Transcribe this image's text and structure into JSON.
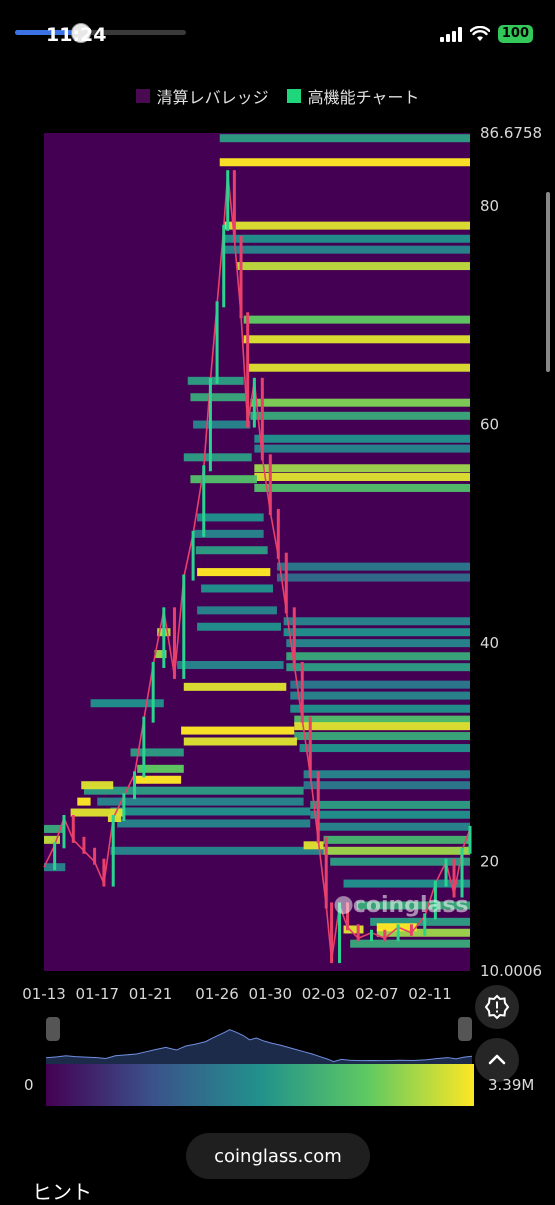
{
  "status_bar": {
    "time": "11:24",
    "battery": "100",
    "media_progress": 0.38
  },
  "legend": [
    {
      "label": "清算レバレッジ",
      "color": "#4a0a52"
    },
    {
      "label": "高機能チャート",
      "color": "#1fd67a"
    }
  ],
  "chart_data": {
    "type": "heatmap",
    "title": "",
    "y_ticks": [
      "86.6758",
      "80",
      "60",
      "40",
      "20",
      "10.0006"
    ],
    "y_tick_values": [
      86.6758,
      80,
      60,
      40,
      20,
      10.0006
    ],
    "ylim": [
      10.0006,
      86.6758
    ],
    "x_ticks": [
      "01-13",
      "01-17",
      "01-21",
      "01-26",
      "01-30",
      "02-03",
      "02-07",
      "02-11"
    ],
    "x_range_days": [
      0,
      32
    ],
    "x_tick_days": [
      0,
      4,
      8,
      13,
      17,
      21,
      25,
      29
    ],
    "price_series": [
      {
        "d": 0,
        "p": 19.5
      },
      {
        "d": 0.8,
        "p": 21.5
      },
      {
        "d": 1.5,
        "p": 24
      },
      {
        "d": 2.2,
        "p": 22
      },
      {
        "d": 3,
        "p": 21
      },
      {
        "d": 3.8,
        "p": 20
      },
      {
        "d": 4.5,
        "p": 18
      },
      {
        "d": 5.2,
        "p": 24
      },
      {
        "d": 6,
        "p": 26
      },
      {
        "d": 6.8,
        "p": 28
      },
      {
        "d": 7.5,
        "p": 33
      },
      {
        "d": 8.2,
        "p": 38
      },
      {
        "d": 9,
        "p": 43
      },
      {
        "d": 9.8,
        "p": 37
      },
      {
        "d": 10.5,
        "p": 46
      },
      {
        "d": 11.2,
        "p": 50
      },
      {
        "d": 12,
        "p": 56
      },
      {
        "d": 12.5,
        "p": 64
      },
      {
        "d": 13,
        "p": 71
      },
      {
        "d": 13.5,
        "p": 78
      },
      {
        "d": 13.8,
        "p": 83
      },
      {
        "d": 14.3,
        "p": 77
      },
      {
        "d": 14.8,
        "p": 70
      },
      {
        "d": 15.3,
        "p": 60
      },
      {
        "d": 15.8,
        "p": 64
      },
      {
        "d": 16.4,
        "p": 57
      },
      {
        "d": 17,
        "p": 52
      },
      {
        "d": 17.6,
        "p": 48
      },
      {
        "d": 18.2,
        "p": 43
      },
      {
        "d": 18.8,
        "p": 38
      },
      {
        "d": 19.4,
        "p": 33
      },
      {
        "d": 20,
        "p": 28
      },
      {
        "d": 20.6,
        "p": 22
      },
      {
        "d": 21.2,
        "p": 16
      },
      {
        "d": 21.6,
        "p": 11
      },
      {
        "d": 22.2,
        "p": 16
      },
      {
        "d": 22.8,
        "p": 14
      },
      {
        "d": 23.6,
        "p": 13
      },
      {
        "d": 24.6,
        "p": 13.5
      },
      {
        "d": 25.6,
        "p": 13
      },
      {
        "d": 26.6,
        "p": 14
      },
      {
        "d": 27.6,
        "p": 13.5
      },
      {
        "d": 28.6,
        "p": 15
      },
      {
        "d": 29.4,
        "p": 18
      },
      {
        "d": 30.2,
        "p": 20
      },
      {
        "d": 30.8,
        "p": 17
      },
      {
        "d": 31.4,
        "p": 21
      },
      {
        "d": 32,
        "p": 23
      }
    ],
    "liquidation_levels": [
      {
        "p": 86.2,
        "d0": 13.2,
        "i": 0.55
      },
      {
        "p": 84,
        "d0": 13.2,
        "i": 1.0
      },
      {
        "p": 78.2,
        "d0": 13.5,
        "i": 0.95
      },
      {
        "p": 77,
        "d0": 13.5,
        "i": 0.5
      },
      {
        "p": 76,
        "d0": 13.5,
        "i": 0.45
      },
      {
        "p": 74.5,
        "d0": 14.5,
        "i": 0.9
      },
      {
        "p": 69.6,
        "d0": 15,
        "i": 0.75
      },
      {
        "p": 67.8,
        "d0": 15,
        "i": 0.95
      },
      {
        "p": 65.2,
        "d0": 15.3,
        "i": 0.95
      },
      {
        "p": 62,
        "d0": 15.5,
        "i": 0.8
      },
      {
        "p": 60.8,
        "d0": 15.5,
        "i": 0.6
      },
      {
        "p": 58.7,
        "d0": 15.8,
        "i": 0.5
      },
      {
        "p": 57.8,
        "d0": 15.8,
        "i": 0.45
      },
      {
        "p": 56,
        "d0": 15.8,
        "i": 0.85
      },
      {
        "p": 55.2,
        "d0": 15.8,
        "i": 0.95
      },
      {
        "p": 54.2,
        "d0": 15.8,
        "i": 0.7
      },
      {
        "p": 47,
        "d0": 17.5,
        "i": 0.4
      },
      {
        "p": 46,
        "d0": 17.5,
        "i": 0.35
      },
      {
        "p": 42,
        "d0": 18,
        "i": 0.45
      },
      {
        "p": 41,
        "d0": 18,
        "i": 0.5
      },
      {
        "p": 40,
        "d0": 18.2,
        "i": 0.45
      },
      {
        "p": 38.8,
        "d0": 18.2,
        "i": 0.6
      },
      {
        "p": 37.8,
        "d0": 18.2,
        "i": 0.55
      },
      {
        "p": 36.2,
        "d0": 18.5,
        "i": 0.4
      },
      {
        "p": 35.2,
        "d0": 18.5,
        "i": 0.45
      },
      {
        "p": 34,
        "d0": 18.5,
        "i": 0.5
      },
      {
        "p": 33,
        "d0": 18.8,
        "i": 0.7
      },
      {
        "p": 32.4,
        "d0": 18.8,
        "i": 0.95
      },
      {
        "p": 31.5,
        "d0": 18.8,
        "i": 0.6
      },
      {
        "p": 30.4,
        "d0": 19.2,
        "i": 0.5
      },
      {
        "p": 28,
        "d0": 19.5,
        "i": 0.45
      },
      {
        "p": 27,
        "d0": 19.5,
        "i": 0.4
      },
      {
        "p": 25.2,
        "d0": 20,
        "i": 0.55
      },
      {
        "p": 24.3,
        "d0": 20,
        "i": 0.5
      },
      {
        "p": 23.2,
        "d0": 20.5,
        "i": 0.45
      },
      {
        "p": 22,
        "d0": 21,
        "i": 0.65
      },
      {
        "p": 21,
        "d0": 21,
        "i": 0.85
      },
      {
        "p": 20,
        "d0": 21.5,
        "i": 0.55
      },
      {
        "p": 18,
        "d0": 22.5,
        "i": 0.5
      },
      {
        "p": 16,
        "d0": 23.5,
        "i": 0.6
      },
      {
        "p": 14.5,
        "d0": 24.5,
        "i": 0.55
      },
      {
        "p": 13.5,
        "d0": 25,
        "i": 0.85
      },
      {
        "p": 12.5,
        "d0": 23,
        "i": 0.6
      },
      {
        "p": 64,
        "d0": 10.8,
        "d1": 15,
        "i": 0.55
      },
      {
        "p": 62.5,
        "d0": 11,
        "d1": 15.4,
        "i": 0.6
      },
      {
        "p": 60,
        "d0": 11.2,
        "d1": 15.5,
        "i": 0.45
      },
      {
        "p": 57,
        "d0": 10.5,
        "d1": 15.6,
        "i": 0.55
      },
      {
        "p": 55,
        "d0": 11,
        "d1": 16,
        "i": 0.7
      },
      {
        "p": 51.5,
        "d0": 11.5,
        "d1": 16.5,
        "i": 0.5
      },
      {
        "p": 50,
        "d0": 11.3,
        "d1": 16.5,
        "i": 0.45
      },
      {
        "p": 48.5,
        "d0": 11.4,
        "d1": 16.8,
        "i": 0.55
      },
      {
        "p": 46.5,
        "d0": 11.5,
        "d1": 17,
        "i": 1.0
      },
      {
        "p": 45,
        "d0": 11.8,
        "d1": 17.2,
        "i": 0.5
      },
      {
        "p": 43,
        "d0": 11.5,
        "d1": 17.5,
        "i": 0.45
      },
      {
        "p": 41.5,
        "d0": 11.5,
        "d1": 17.8,
        "i": 0.5
      },
      {
        "p": 38,
        "d0": 10,
        "d1": 18,
        "i": 0.45
      },
      {
        "p": 36,
        "d0": 10.5,
        "d1": 18.2,
        "i": 0.95
      },
      {
        "p": 32,
        "d0": 10.3,
        "d1": 18.8,
        "i": 1.0
      },
      {
        "p": 31,
        "d0": 10.5,
        "d1": 19,
        "i": 0.95
      },
      {
        "p": 34.5,
        "d0": 3.5,
        "d1": 9,
        "i": 0.5
      },
      {
        "p": 30,
        "d0": 6.5,
        "d1": 10.5,
        "i": 0.55
      },
      {
        "p": 28.5,
        "d0": 7,
        "d1": 10.5,
        "i": 0.75
      },
      {
        "p": 27.5,
        "d0": 6.8,
        "d1": 10.3,
        "i": 1.0
      },
      {
        "p": 26.5,
        "d0": 3,
        "d1": 19.5,
        "i": 0.55
      },
      {
        "p": 25.5,
        "d0": 4,
        "d1": 19.5,
        "i": 0.45
      },
      {
        "p": 24.6,
        "d0": 5,
        "d1": 20,
        "i": 0.5
      },
      {
        "p": 23.5,
        "d0": 5.5,
        "d1": 20,
        "i": 0.45
      },
      {
        "p": 21,
        "d0": 5,
        "d1": 21,
        "i": 0.45
      },
      {
        "p": 19.5,
        "d0": 0,
        "d1": 1.6,
        "i": 0.45
      },
      {
        "p": 22,
        "d0": 0,
        "d1": 1.2,
        "i": 0.9
      },
      {
        "p": 23,
        "d0": 0,
        "d1": 1.5,
        "i": 0.6
      },
      {
        "p": 25.5,
        "d0": 2.5,
        "d1": 3.5,
        "i": 1.0
      },
      {
        "p": 24,
        "d0": 4.8,
        "d1": 5.8,
        "i": 0.95
      },
      {
        "p": 24.5,
        "d0": 2,
        "d1": 6,
        "i": 0.95
      },
      {
        "p": 27,
        "d0": 2.8,
        "d1": 5.2,
        "i": 0.95
      },
      {
        "p": 41,
        "d0": 8.5,
        "d1": 9.5,
        "i": 0.9
      },
      {
        "p": 39,
        "d0": 8.3,
        "d1": 9.2,
        "i": 0.85
      },
      {
        "p": 14,
        "d0": 25,
        "d1": 28,
        "i": 1.0
      },
      {
        "p": 13.8,
        "d0": 22.5,
        "d1": 24,
        "i": 0.95
      },
      {
        "p": 21.5,
        "d0": 19.5,
        "d1": 21,
        "i": 0.95
      }
    ],
    "watermark": "coinglass"
  },
  "controls": {
    "alert_icon": "alert-icon",
    "scroll_top_icon": "chevron-up-icon"
  },
  "colorbar": {
    "min": "0",
    "max": "3.39M"
  },
  "url_bar": {
    "label": "coinglass.com"
  },
  "hint": {
    "label": "ヒント"
  }
}
